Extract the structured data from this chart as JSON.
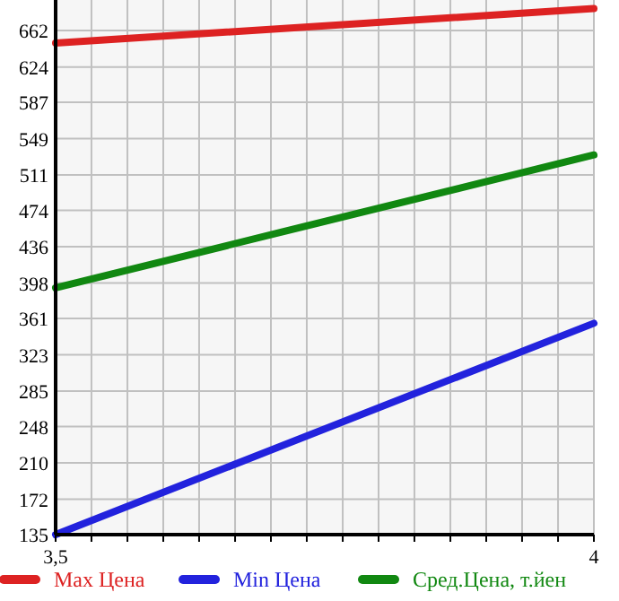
{
  "chart_data": {
    "type": "line",
    "x": [
      3.5,
      4
    ],
    "series": [
      {
        "name": "Max Цена",
        "color": "#dd2222",
        "values": [
          649,
          685
        ]
      },
      {
        "name": "Min Цена",
        "color": "#2222dd",
        "values": [
          135,
          356
        ]
      },
      {
        "name": "Сред.Цена, т.йен",
        "color": "#118811",
        "values": [
          393,
          532
        ]
      }
    ],
    "xlim": [
      3.5,
      4
    ],
    "xticks": [
      {
        "value": 3.5,
        "label": "3,5"
      },
      {
        "value": 3.5333,
        "label": null
      },
      {
        "value": 3.5667,
        "label": null
      },
      {
        "value": 3.6,
        "label": null
      },
      {
        "value": 3.6333,
        "label": null
      },
      {
        "value": 3.6667,
        "label": null
      },
      {
        "value": 3.7,
        "label": null
      },
      {
        "value": 3.7333,
        "label": null
      },
      {
        "value": 3.7667,
        "label": null
      },
      {
        "value": 3.8,
        "label": null
      },
      {
        "value": 3.8333,
        "label": null
      },
      {
        "value": 3.8667,
        "label": null
      },
      {
        "value": 3.9,
        "label": null
      },
      {
        "value": 3.9333,
        "label": null
      },
      {
        "value": 3.9667,
        "label": null
      },
      {
        "value": 4,
        "label": "4"
      }
    ],
    "ylim": [
      135,
      694
    ],
    "yticks": [
      135,
      172,
      210,
      248,
      285,
      323,
      361,
      398,
      436,
      474,
      511,
      549,
      587,
      624,
      662
    ],
    "grid": true,
    "legend": "bottom",
    "marker": "none",
    "line_style": "solid"
  }
}
